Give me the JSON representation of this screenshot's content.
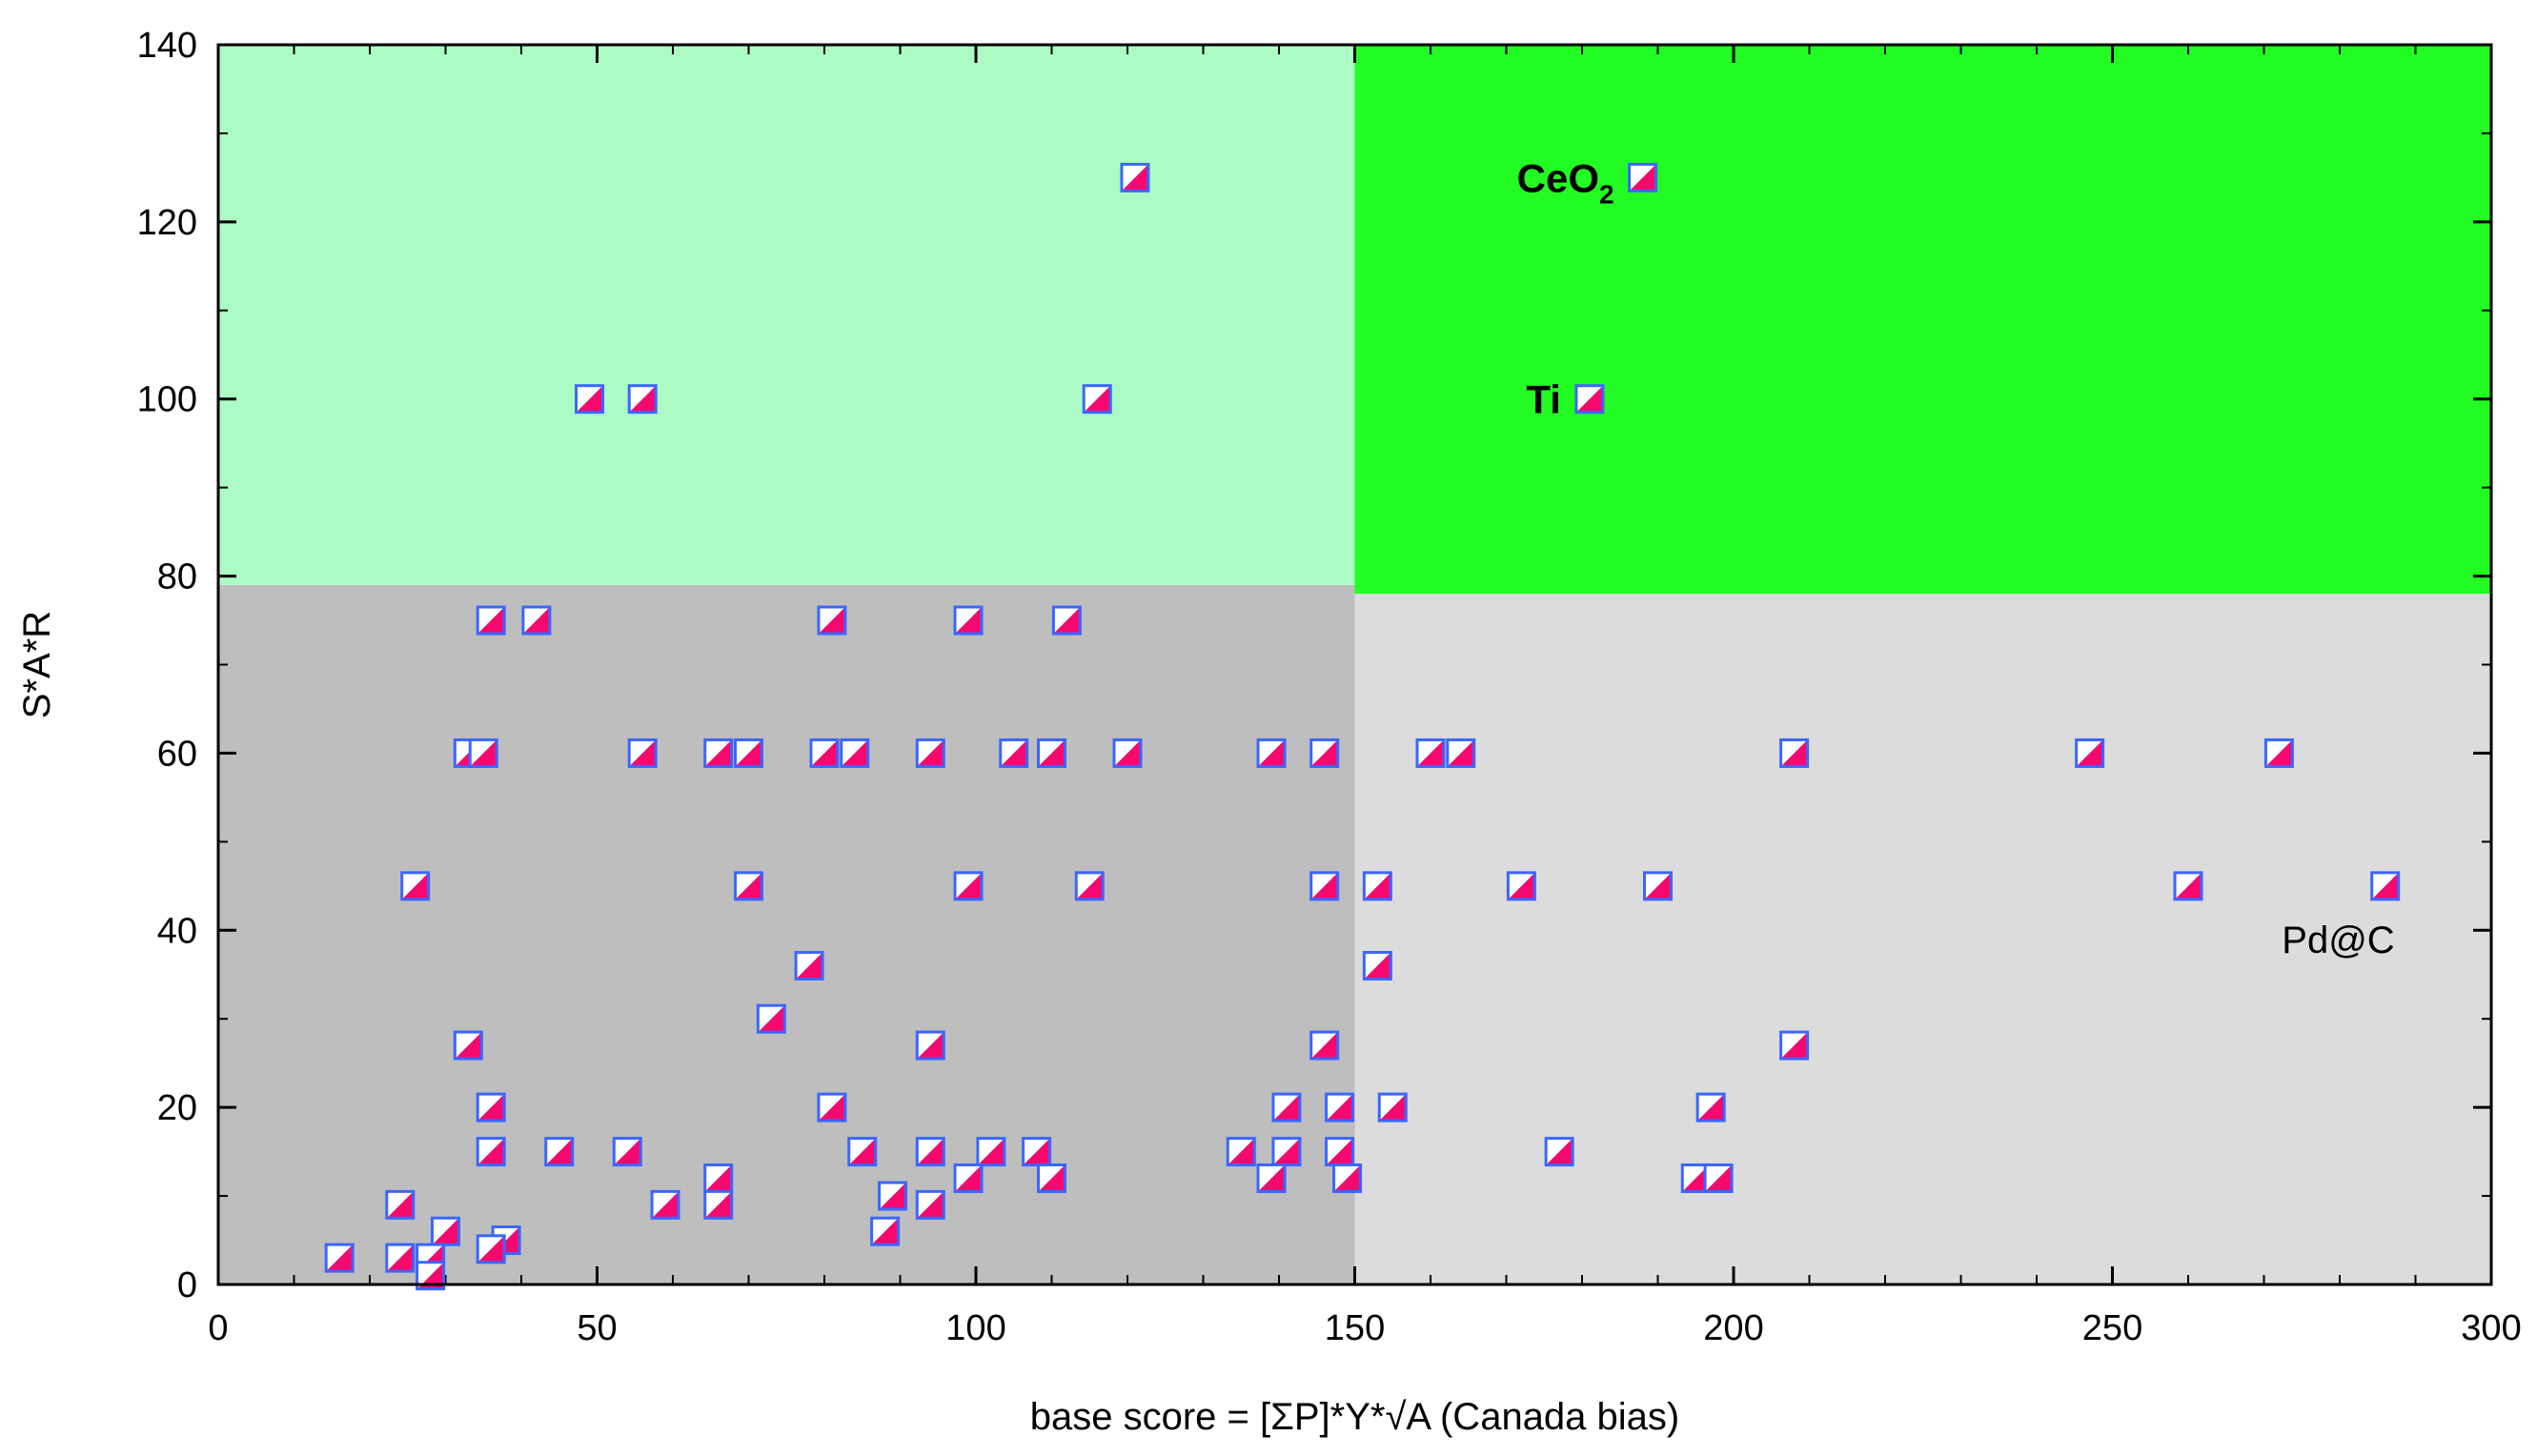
{
  "chart_data": {
    "type": "scatter",
    "xlabel": "base score = [ΣP]*Y*√A (Canada bias)",
    "ylabel": "S*A*R",
    "xlim": [
      0,
      300
    ],
    "ylim": [
      0,
      140
    ],
    "x_ticks": [
      "0",
      "50",
      "100",
      "150",
      "200",
      "250",
      "300"
    ],
    "y_ticks": [
      "0",
      "20",
      "40",
      "60",
      "80",
      "100",
      "120",
      "140"
    ],
    "grid": false,
    "regions": [
      {
        "x": [
          0,
          150
        ],
        "y": [
          0,
          79
        ],
        "color": "#bebebe"
      },
      {
        "x": [
          150,
          300
        ],
        "y": [
          0,
          78
        ],
        "color": "#dcdcdc"
      },
      {
        "x": [
          0,
          150
        ],
        "y": [
          79,
          140
        ],
        "color": "#adfbc4"
      },
      {
        "x": [
          150,
          300
        ],
        "y": [
          78,
          140
        ],
        "color": "#22fc22"
      }
    ],
    "marker_colors": {
      "fill_upper": "#ffffff",
      "fill_lower": "#f5096f",
      "edge": "#3b66ff"
    },
    "annotations": [
      {
        "text": "CeO",
        "subscript": "2",
        "x": 188,
        "y": 125,
        "bold": true
      },
      {
        "text": "Ti",
        "subscript": "",
        "x": 181,
        "y": 100,
        "bold": true
      },
      {
        "text": "Pd@C",
        "subscript": "",
        "x": 286,
        "y": 45,
        "bold": false
      }
    ],
    "points": [
      [
        121,
        125
      ],
      [
        188,
        125
      ],
      [
        49,
        100
      ],
      [
        56,
        100
      ],
      [
        116,
        100
      ],
      [
        181,
        100
      ],
      [
        36,
        75
      ],
      [
        42,
        75
      ],
      [
        81,
        75
      ],
      [
        99,
        75
      ],
      [
        112,
        75
      ],
      [
        33,
        60
      ],
      [
        35,
        60
      ],
      [
        56,
        60
      ],
      [
        66,
        60
      ],
      [
        70,
        60
      ],
      [
        80,
        60
      ],
      [
        84,
        60
      ],
      [
        94,
        60
      ],
      [
        105,
        60
      ],
      [
        110,
        60
      ],
      [
        120,
        60
      ],
      [
        139,
        60
      ],
      [
        146,
        60
      ],
      [
        160,
        60
      ],
      [
        164,
        60
      ],
      [
        208,
        60
      ],
      [
        247,
        60
      ],
      [
        272,
        60
      ],
      [
        26,
        45
      ],
      [
        70,
        45
      ],
      [
        99,
        45
      ],
      [
        115,
        45
      ],
      [
        146,
        45
      ],
      [
        153,
        45
      ],
      [
        172,
        45
      ],
      [
        190,
        45
      ],
      [
        260,
        45
      ],
      [
        286,
        45
      ],
      [
        78,
        36
      ],
      [
        153,
        36
      ],
      [
        73,
        30
      ],
      [
        33,
        27
      ],
      [
        94,
        27
      ],
      [
        146,
        27
      ],
      [
        208,
        27
      ],
      [
        36,
        20
      ],
      [
        81,
        20
      ],
      [
        141,
        20
      ],
      [
        148,
        20
      ],
      [
        155,
        20
      ],
      [
        197,
        20
      ],
      [
        36,
        15
      ],
      [
        45,
        15
      ],
      [
        54,
        15
      ],
      [
        85,
        15
      ],
      [
        94,
        15
      ],
      [
        102,
        15
      ],
      [
        108,
        15
      ],
      [
        135,
        15
      ],
      [
        141,
        15
      ],
      [
        148,
        15
      ],
      [
        177,
        15
      ],
      [
        66,
        12
      ],
      [
        99,
        12
      ],
      [
        110,
        12
      ],
      [
        139,
        12
      ],
      [
        149,
        12
      ],
      [
        195,
        12
      ],
      [
        198,
        12
      ],
      [
        89,
        10
      ],
      [
        24,
        9
      ],
      [
        59,
        9
      ],
      [
        66,
        9
      ],
      [
        94,
        9
      ],
      [
        30,
        6
      ],
      [
        88,
        6
      ],
      [
        38,
        5
      ],
      [
        36,
        4
      ],
      [
        16,
        3
      ],
      [
        24,
        3
      ],
      [
        28,
        3
      ],
      [
        28,
        1
      ]
    ]
  }
}
